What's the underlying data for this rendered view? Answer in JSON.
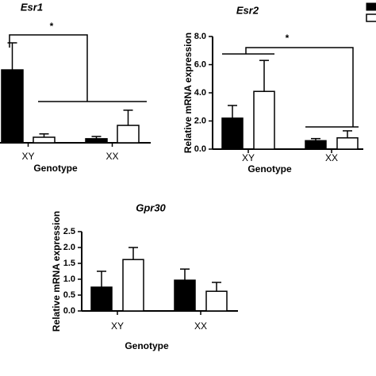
{
  "chart_data": [
    {
      "type": "bar",
      "title": "Esr1",
      "xlabel": "Genotype",
      "categories": [
        "XY",
        "XX"
      ],
      "ylim": [
        0,
        3
      ],
      "series": [
        {
          "color": "#000000",
          "values": [
            1.97,
            0.11
          ],
          "errors": [
            0.73,
            0.06
          ]
        },
        {
          "color": "#ffffff",
          "values": [
            0.15,
            0.47
          ],
          "errors": [
            0.09,
            0.41
          ]
        }
      ],
      "annotation": "*"
    },
    {
      "type": "bar",
      "title": "Esr2",
      "xlabel": "Genotype",
      "ylabel": "Relative mRNA expression",
      "categories": [
        "XY",
        "XX"
      ],
      "ylim": [
        0,
        8
      ],
      "yticks": [
        {
          "value": 0,
          "label": "0.0"
        },
        {
          "value": 2,
          "label": "2.0"
        },
        {
          "value": 4,
          "label": "4.0"
        },
        {
          "value": 6,
          "label": "6.0"
        },
        {
          "value": 8,
          "label": "8.0"
        }
      ],
      "series": [
        {
          "color": "#000000",
          "values": [
            2.2,
            0.6
          ],
          "errors": [
            0.9,
            0.15
          ]
        },
        {
          "color": "#ffffff",
          "values": [
            4.1,
            0.8
          ],
          "errors": [
            2.2,
            0.5
          ]
        }
      ],
      "annotation": "*"
    },
    {
      "type": "bar",
      "title": "Gpr30",
      "xlabel": "Genotype",
      "ylabel": "Relative mRNA expression",
      "categories": [
        "XY",
        "XX"
      ],
      "ylim": [
        0,
        2.5
      ],
      "yticks": [
        {
          "value": 0,
          "label": "0.0"
        },
        {
          "value": 0.5,
          "label": "0.5"
        },
        {
          "value": 1,
          "label": "1.0"
        },
        {
          "value": 1.5,
          "label": "1.5"
        },
        {
          "value": 2,
          "label": "2.0"
        },
        {
          "value": 2.5,
          "label": "2.5"
        }
      ],
      "series": [
        {
          "color": "#000000",
          "values": [
            0.75,
            0.97
          ],
          "errors": [
            0.5,
            0.35
          ]
        },
        {
          "color": "#ffffff",
          "values": [
            1.62,
            0.62
          ],
          "errors": [
            0.38,
            0.28
          ]
        }
      ]
    }
  ]
}
